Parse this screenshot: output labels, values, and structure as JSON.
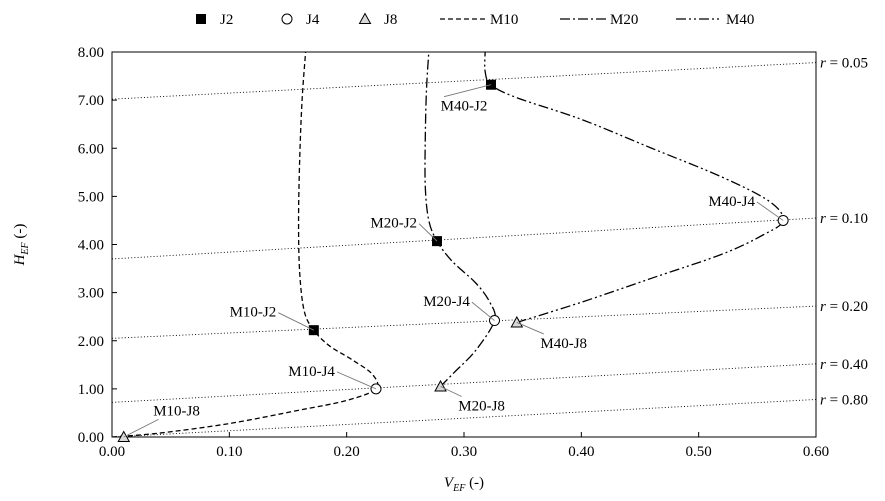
{
  "chart_data": {
    "type": "scatter",
    "xlabel_main": "V",
    "xlabel_sub": "EF",
    "xlabel_unit": " (-)",
    "ylabel_main": "H",
    "ylabel_sub": "EF",
    "ylabel_unit": " (-)",
    "xlim": [
      0,
      0.6
    ],
    "ylim": [
      0,
      8
    ],
    "xticks": [
      "0.00",
      "0.10",
      "0.20",
      "0.30",
      "0.40",
      "0.50",
      "0.60"
    ],
    "yticks": [
      "0.00",
      "1.00",
      "2.00",
      "3.00",
      "4.00",
      "5.00",
      "6.00",
      "7.00",
      "8.00"
    ],
    "legend": {
      "position": "top",
      "items": [
        {
          "label": "J2",
          "kind": "marker",
          "marker": "square-filled"
        },
        {
          "label": "J4",
          "kind": "marker",
          "marker": "circle-open"
        },
        {
          "label": "J8",
          "kind": "marker",
          "marker": "triangle-open"
        },
        {
          "label": "M10",
          "kind": "line",
          "dash": "5,3"
        },
        {
          "label": "M20",
          "kind": "line",
          "dash": "10,3,2,3"
        },
        {
          "label": "M40",
          "kind": "line",
          "dash": "10,3,2,3,2,3"
        }
      ]
    },
    "curves": [
      {
        "name": "M10",
        "dash": "5,3",
        "points": [
          [
            0.0,
            0.0
          ],
          [
            0.04,
            0.08
          ],
          [
            0.1,
            0.28
          ],
          [
            0.16,
            0.56
          ],
          [
            0.2,
            0.76
          ],
          [
            0.225,
            1.0
          ],
          [
            0.222,
            1.3
          ],
          [
            0.205,
            1.6
          ],
          [
            0.185,
            1.9
          ],
          [
            0.172,
            2.22
          ],
          [
            0.164,
            2.6
          ],
          [
            0.16,
            3.4
          ],
          [
            0.159,
            4.5
          ],
          [
            0.16,
            5.8
          ],
          [
            0.162,
            7.0
          ],
          [
            0.165,
            8.0
          ]
        ]
      },
      {
        "name": "M20",
        "dash": "10,3,2,3",
        "points": [
          [
            0.28,
            1.05
          ],
          [
            0.292,
            1.35
          ],
          [
            0.31,
            1.8
          ],
          [
            0.326,
            2.42
          ],
          [
            0.322,
            2.8
          ],
          [
            0.31,
            3.2
          ],
          [
            0.29,
            3.65
          ],
          [
            0.277,
            4.07
          ],
          [
            0.27,
            4.5
          ],
          [
            0.267,
            5.2
          ],
          [
            0.267,
            6.2
          ],
          [
            0.268,
            7.2
          ],
          [
            0.27,
            8.0
          ]
        ]
      },
      {
        "name": "M40",
        "dash": "10,3,2,3,2,3",
        "points": [
          [
            0.345,
            2.38
          ],
          [
            0.4,
            2.8
          ],
          [
            0.46,
            3.3
          ],
          [
            0.52,
            3.8
          ],
          [
            0.555,
            4.2
          ],
          [
            0.572,
            4.5
          ],
          [
            0.56,
            4.9
          ],
          [
            0.52,
            5.4
          ],
          [
            0.46,
            6.0
          ],
          [
            0.4,
            6.6
          ],
          [
            0.345,
            7.05
          ],
          [
            0.323,
            7.32
          ],
          [
            0.318,
            7.6
          ],
          [
            0.318,
            8.0
          ]
        ]
      }
    ],
    "points": [
      {
        "series": "J2",
        "marker": "square-filled",
        "label": "M10-J2",
        "x": 0.172,
        "y": 2.22,
        "label_pos": "left",
        "label_at": [
          0.14,
          2.5
        ]
      },
      {
        "series": "J2",
        "marker": "square-filled",
        "label": "M20-J2",
        "x": 0.277,
        "y": 4.07,
        "label_pos": "left",
        "label_at": [
          0.26,
          4.35
        ]
      },
      {
        "series": "J2",
        "marker": "square-filled",
        "label": "M40-J2",
        "x": 0.323,
        "y": 7.32,
        "label_pos": "below",
        "label_at": [
          0.3,
          6.78
        ]
      },
      {
        "series": "J4",
        "marker": "circle-open",
        "label": "M10-J4",
        "x": 0.225,
        "y": 1.0,
        "label_pos": "left",
        "label_at": [
          0.19,
          1.27
        ]
      },
      {
        "series": "J4",
        "marker": "circle-open",
        "label": "M20-J4",
        "x": 0.326,
        "y": 2.42,
        "label_pos": "left",
        "label_at": [
          0.305,
          2.72
        ]
      },
      {
        "series": "J4",
        "marker": "circle-open",
        "label": "M40-J4",
        "x": 0.572,
        "y": 4.5,
        "label_pos": "left",
        "label_at": [
          0.548,
          4.8
        ]
      },
      {
        "series": "J8",
        "marker": "triangle-open",
        "label": "M10-J8",
        "x": 0.01,
        "y": 0.0,
        "label_pos": "above",
        "label_at": [
          0.055,
          0.45
        ]
      },
      {
        "series": "J8",
        "marker": "triangle-open",
        "label": "M20-J8",
        "x": 0.28,
        "y": 1.05,
        "label_pos": "below",
        "label_at": [
          0.315,
          0.55
        ]
      },
      {
        "series": "J8",
        "marker": "triangle-open",
        "label": "M40-J8",
        "x": 0.345,
        "y": 2.38,
        "label_pos": "below",
        "label_at": [
          0.385,
          1.85
        ]
      }
    ],
    "r_lines": [
      {
        "label": "r",
        "value": "= 0.05",
        "x0": 0.0,
        "y0": 7.02,
        "x1": 0.6,
        "y1": 7.78
      },
      {
        "label": "r",
        "value": "= 0.10",
        "x0": 0.0,
        "y0": 3.7,
        "x1": 0.6,
        "y1": 4.55
      },
      {
        "label": "r",
        "value": "= 0.20",
        "x0": 0.0,
        "y0": 2.05,
        "x1": 0.6,
        "y1": 2.72
      },
      {
        "label": "r",
        "value": "= 0.40",
        "x0": 0.0,
        "y0": 0.72,
        "x1": 0.6,
        "y1": 1.52
      },
      {
        "label": "r",
        "value": "= 0.80",
        "x0": 0.0,
        "y0": 0.0,
        "x1": 0.6,
        "y1": 0.78
      }
    ]
  }
}
